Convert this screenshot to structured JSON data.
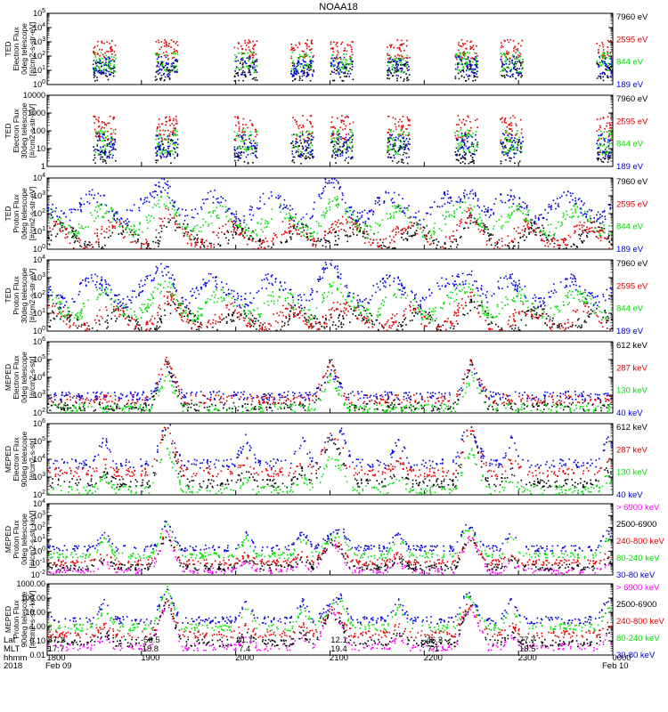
{
  "title": "NOAA18",
  "colors": {
    "black": "#000000",
    "red": "#e00000",
    "green": "#00e000",
    "blue": "#0000e0",
    "magenta": "#ff00ff"
  },
  "chart_data": [
    {
      "type": "scatter",
      "id": "ted-e-0",
      "ylabel": [
        "TED",
        "Electron Flux",
        "0deg telescope",
        "[#/cm2-s-str-eV]"
      ],
      "ytick_labels": [
        "10^0",
        "10^1",
        "10^2",
        "10^3",
        "10^4",
        "10^5"
      ],
      "ylim_log": [
        0,
        5
      ],
      "ytick_style": "exp",
      "legend": [
        {
          "label": "7960 eV",
          "color": "black"
        },
        {
          "label": "2595 eV",
          "color": "red"
        },
        {
          "label": "844 eV",
          "color": "green"
        },
        {
          "label": "189 eV",
          "color": "blue"
        }
      ],
      "series": [
        {
          "name": "7960 eV",
          "color": "black",
          "level": 1.0
        },
        {
          "name": "2595 eV",
          "color": "red",
          "level": 2.2
        },
        {
          "name": "844 eV",
          "color": "green",
          "level": 1.6
        },
        {
          "name": "189 eV",
          "color": "blue",
          "level": 1.3
        }
      ]
    },
    {
      "type": "scatter",
      "id": "ted-e-30",
      "ylabel": [
        "TED",
        "Electron Flux",
        "30deg telescope",
        "[#/cm2-s-str-eV]"
      ],
      "ytick_labels": [
        "1",
        "10",
        "100",
        "1000",
        "10000"
      ],
      "ylim_log": [
        0,
        4
      ],
      "ytick_style": "plain",
      "legend": [
        {
          "label": "7960 eV",
          "color": "black"
        },
        {
          "label": "2595 eV",
          "color": "red"
        },
        {
          "label": "844 eV",
          "color": "green"
        },
        {
          "label": "189 eV",
          "color": "blue"
        }
      ],
      "series": [
        {
          "name": "7960 eV",
          "color": "black",
          "level": 0.9
        },
        {
          "name": "2595 eV",
          "color": "red",
          "level": 1.9
        },
        {
          "name": "844 eV",
          "color": "green",
          "level": 1.4
        },
        {
          "name": "189 eV",
          "color": "blue",
          "level": 1.2
        }
      ]
    },
    {
      "type": "scatter",
      "id": "ted-p-0",
      "ylabel": [
        "TED",
        "Proton Flux",
        "0deg telescope",
        "[#/cm2-s-str-eV]"
      ],
      "ytick_labels": [
        "10^0",
        "10^1",
        "10^2",
        "10^3",
        "10^4"
      ],
      "ylim_log": [
        0,
        4
      ],
      "ytick_style": "exp",
      "legend": [
        {
          "label": "7960 eV",
          "color": "black"
        },
        {
          "label": "2595 eV",
          "color": "red"
        },
        {
          "label": "844 eV",
          "color": "green"
        },
        {
          "label": "189 eV",
          "color": "blue"
        }
      ],
      "series": [
        {
          "name": "7960 eV",
          "color": "black",
          "level": 0.6
        },
        {
          "name": "2595 eV",
          "color": "red",
          "level": 0.8
        },
        {
          "name": "844 eV",
          "color": "green",
          "level": 1.6
        },
        {
          "name": "189 eV",
          "color": "blue",
          "level": 2.4
        }
      ]
    },
    {
      "type": "scatter",
      "id": "ted-p-30",
      "ylabel": [
        "TED",
        "Proton Flux",
        "30deg telescope",
        "[#/cm2-s-str-eV]"
      ],
      "ytick_labels": [
        "10^0",
        "10^1",
        "10^2",
        "10^3",
        "10^4"
      ],
      "ylim_log": [
        0,
        4
      ],
      "ytick_style": "exp",
      "legend": [
        {
          "label": "7960 eV",
          "color": "black"
        },
        {
          "label": "2595 eV",
          "color": "red"
        },
        {
          "label": "844 eV",
          "color": "green"
        },
        {
          "label": "189 eV",
          "color": "blue"
        }
      ],
      "series": [
        {
          "name": "7960 eV",
          "color": "black",
          "level": 0.5
        },
        {
          "name": "2595 eV",
          "color": "red",
          "level": 0.7
        },
        {
          "name": "844 eV",
          "color": "green",
          "level": 1.5
        },
        {
          "name": "189 eV",
          "color": "blue",
          "level": 2.3
        }
      ]
    },
    {
      "type": "scatter",
      "id": "meped-e-0",
      "ylabel": [
        "MEPED",
        "Electron Flux",
        "0deg telescope",
        "[#/cm2-s-str]"
      ],
      "ytick_labels": [
        "10^2",
        "10^3",
        "10^4",
        "10^5",
        "10^6"
      ],
      "ylim_log": [
        2,
        6
      ],
      "ytick_style": "exp",
      "legend": [
        {
          "label": "612 keV",
          "color": "black"
        },
        {
          "label": "287 keV",
          "color": "red"
        },
        {
          "label": "130 keV",
          "color": "green"
        },
        {
          "label": "40 keV",
          "color": "blue"
        }
      ],
      "series": [
        {
          "name": "612 keV",
          "color": "black",
          "level": 2.4
        },
        {
          "name": "287 keV",
          "color": "red",
          "level": 2.8
        },
        {
          "name": "130 keV",
          "color": "green",
          "level": 2.3
        },
        {
          "name": "40 keV",
          "color": "blue",
          "level": 3.0
        }
      ]
    },
    {
      "type": "scatter",
      "id": "meped-e-90",
      "ylabel": [
        "MEPED",
        "Electron Flux",
        "90deg telescope",
        "[#/cm2-s-str]"
      ],
      "ytick_labels": [
        "10^2",
        "10^3",
        "10^4",
        "10^5",
        "10^6"
      ],
      "ylim_log": [
        2,
        6
      ],
      "ytick_style": "exp",
      "legend": [
        {
          "label": "612 keV",
          "color": "black"
        },
        {
          "label": "287 keV",
          "color": "red"
        },
        {
          "label": "130 keV",
          "color": "green"
        },
        {
          "label": "40 keV",
          "color": "blue"
        }
      ],
      "series": [
        {
          "name": "612 keV",
          "color": "black",
          "level": 2.7
        },
        {
          "name": "287 keV",
          "color": "red",
          "level": 3.3
        },
        {
          "name": "130 keV",
          "color": "green",
          "level": 2.3
        },
        {
          "name": "40 keV",
          "color": "blue",
          "level": 3.8
        }
      ]
    },
    {
      "type": "scatter",
      "id": "meped-p-0",
      "ylabel": [
        "MEPED",
        "Proton Flux",
        "0deg telescope",
        "[#/cm2-s-str-keV]"
      ],
      "ytick_labels": [
        "10^-2",
        "10^-1",
        "10^0",
        "10^1",
        "10^2",
        "10^3",
        "10^4"
      ],
      "ylim_log": [
        -2,
        4
      ],
      "ytick_style": "exp",
      "legend": [
        {
          "label": "> 6900 keV",
          "color": "magenta"
        },
        {
          "label": "2500-6900",
          "color": "black"
        },
        {
          "label": "240-800 keV",
          "color": "red"
        },
        {
          "label": "80-240 keV",
          "color": "green"
        },
        {
          "label": "30-80 keV",
          "color": "blue"
        }
      ],
      "series": [
        {
          "name": "> 6900 keV",
          "color": "magenta",
          "level": -1.6
        },
        {
          "name": "2500-6900",
          "color": "black",
          "level": -1.3
        },
        {
          "name": "240-800 keV",
          "color": "red",
          "level": -0.9
        },
        {
          "name": "80-240 keV",
          "color": "green",
          "level": -0.3
        },
        {
          "name": "30-80 keV",
          "color": "blue",
          "level": 0.3
        }
      ]
    },
    {
      "type": "scatter",
      "id": "meped-p-90",
      "ylabel": [
        "MEPED",
        "Proton Flux",
        "90deg telescope",
        "[#/cm2-s-str-keV]"
      ],
      "ytick_labels": [
        "0.01",
        "0.10",
        "1.00",
        "10.00",
        "100.00",
        "1000.00"
      ],
      "ylim_log": [
        -2,
        3
      ],
      "ytick_style": "plain",
      "legend": [
        {
          "label": "> 6900 keV",
          "color": "magenta"
        },
        {
          "label": "2500-6900",
          "color": "black"
        },
        {
          "label": "240-800 keV",
          "color": "red"
        },
        {
          "label": "80-240 keV",
          "color": "green"
        },
        {
          "label": "30-80 keV",
          "color": "blue"
        }
      ],
      "series": [
        {
          "name": "> 6900 keV",
          "color": "magenta",
          "level": -1.4
        },
        {
          "name": "2500-6900",
          "color": "black",
          "level": -1.1
        },
        {
          "name": "240-800 keV",
          "color": "red",
          "level": -0.5
        },
        {
          "name": "80-240 keV",
          "color": "green",
          "level": 0.0
        },
        {
          "name": "30-80 keV",
          "color": "blue",
          "level": 0.5
        }
      ]
    }
  ],
  "time_axis": {
    "row_labels": [
      "Lat",
      "MLT",
      "hhmm",
      "2018"
    ],
    "ticks": [
      {
        "lat": "87.1",
        "mlt": "17.7",
        "hhmm": "1800",
        "date": "Feb 09"
      },
      {
        "lat": "-56.5",
        "mlt": "18.8",
        "hhmm": "1900",
        "date": ""
      },
      {
        "lat": "21.7",
        "mlt": "7.4",
        "hhmm": "2000",
        "date": ""
      },
      {
        "lat": "12.1",
        "mlt": "19.4",
        "hhmm": "2100",
        "date": ""
      },
      {
        "lat": "-46.3",
        "mlt": "7.1",
        "hhmm": "2200",
        "date": ""
      },
      {
        "lat": "77.7",
        "mlt": "18.5",
        "hhmm": "2300",
        "date": ""
      },
      {
        "lat": "",
        "mlt": "",
        "hhmm": "0000",
        "date": "Feb 10"
      }
    ]
  }
}
